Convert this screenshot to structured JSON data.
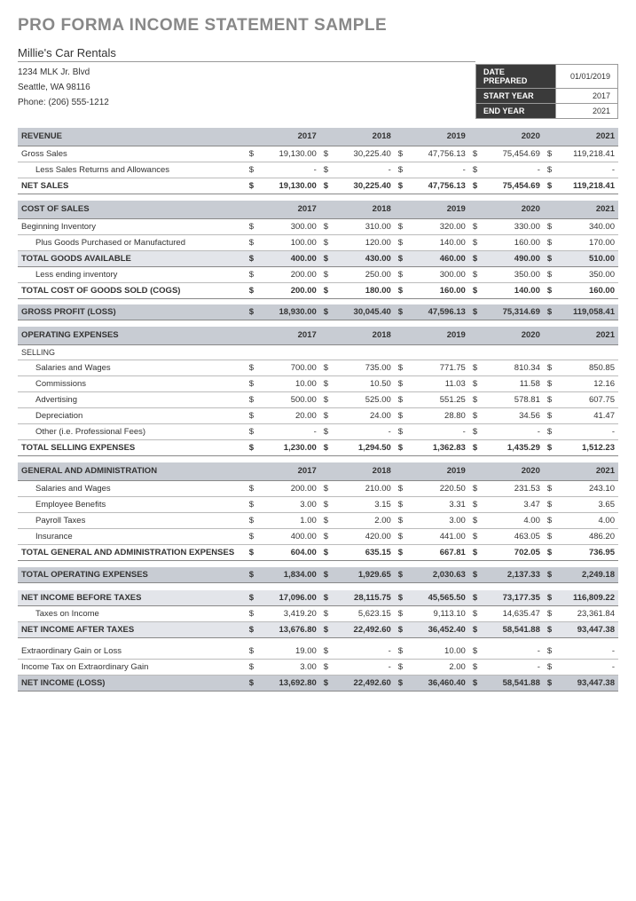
{
  "title": "PRO FORMA INCOME STATEMENT SAMPLE",
  "company": {
    "name": "Millie's Car Rentals",
    "addr1": "1234 MLK Jr. Blvd",
    "addr2": "Seattle, WA 98116",
    "phone": "Phone: (206) 555-1212"
  },
  "meta": {
    "date_prepared_label": "DATE PREPARED",
    "date_prepared": "01/01/2019",
    "start_year_label": "START YEAR",
    "start_year": "2017",
    "end_year_label": "END YEAR",
    "end_year": "2021"
  },
  "years": [
    "2017",
    "2018",
    "2019",
    "2020",
    "2021"
  ],
  "sections": {
    "revenue": {
      "header": "REVENUE",
      "gross_sales": {
        "label": "Gross Sales",
        "v": [
          "19,130.00",
          "30,225.40",
          "47,756.13",
          "75,454.69",
          "119,218.41"
        ]
      },
      "less_returns": {
        "label": "Less Sales Returns and Allowances",
        "v": [
          "-",
          "-",
          "-",
          "-",
          "-"
        ]
      },
      "net_sales": {
        "label": "NET SALES",
        "v": [
          "19,130.00",
          "30,225.40",
          "47,756.13",
          "75,454.69",
          "119,218.41"
        ]
      }
    },
    "cost_of_sales": {
      "header": "COST OF SALES",
      "beg_inv": {
        "label": "Beginning Inventory",
        "v": [
          "300.00",
          "310.00",
          "320.00",
          "330.00",
          "340.00"
        ]
      },
      "plus_goods": {
        "label": "Plus Goods Purchased or Manufactured",
        "v": [
          "100.00",
          "120.00",
          "140.00",
          "160.00",
          "170.00"
        ]
      },
      "total_goods": {
        "label": "TOTAL GOODS AVAILABLE",
        "v": [
          "400.00",
          "430.00",
          "460.00",
          "490.00",
          "510.00"
        ]
      },
      "less_end": {
        "label": "Less ending inventory",
        "v": [
          "200.00",
          "250.00",
          "300.00",
          "350.00",
          "350.00"
        ]
      },
      "cogs": {
        "label": "TOTAL COST OF GOODS SOLD (COGS)",
        "v": [
          "200.00",
          "180.00",
          "160.00",
          "140.00",
          "160.00"
        ]
      },
      "gross_profit": {
        "label": "GROSS PROFIT (LOSS)",
        "v": [
          "18,930.00",
          "30,045.40",
          "47,596.13",
          "75,314.69",
          "119,058.41"
        ]
      }
    },
    "opex": {
      "header": "OPERATING EXPENSES",
      "selling_label": "SELLING",
      "selling": {
        "salaries": {
          "label": "Salaries and Wages",
          "v": [
            "700.00",
            "735.00",
            "771.75",
            "810.34",
            "850.85"
          ]
        },
        "commissions": {
          "label": "Commissions",
          "v": [
            "10.00",
            "10.50",
            "11.03",
            "11.58",
            "12.16"
          ]
        },
        "advertising": {
          "label": "Advertising",
          "v": [
            "500.00",
            "525.00",
            "551.25",
            "578.81",
            "607.75"
          ]
        },
        "depreciation": {
          "label": "Depreciation",
          "v": [
            "20.00",
            "24.00",
            "28.80",
            "34.56",
            "41.47"
          ]
        },
        "other": {
          "label": "Other  (i.e. Professional Fees)",
          "v": [
            "-",
            "-",
            "-",
            "-",
            "-"
          ]
        },
        "total": {
          "label": "TOTAL SELLING EXPENSES",
          "v": [
            "1,230.00",
            "1,294.50",
            "1,362.83",
            "1,435.29",
            "1,512.23"
          ]
        }
      },
      "ga_header": "GENERAL AND ADMINISTRATION",
      "ga": {
        "salaries": {
          "label": "Salaries and Wages",
          "v": [
            "200.00",
            "210.00",
            "220.50",
            "231.53",
            "243.10"
          ]
        },
        "benefits": {
          "label": "Employee Benefits",
          "v": [
            "3.00",
            "3.15",
            "3.31",
            "3.47",
            "3.65"
          ]
        },
        "payroll": {
          "label": "Payroll Taxes",
          "v": [
            "1.00",
            "2.00",
            "3.00",
            "4.00",
            "4.00"
          ]
        },
        "insurance": {
          "label": "Insurance",
          "v": [
            "400.00",
            "420.00",
            "441.00",
            "463.05",
            "486.20"
          ]
        },
        "total": {
          "label": "TOTAL GENERAL AND ADMINISTRATION EXPENSES",
          "v": [
            "604.00",
            "635.15",
            "667.81",
            "702.05",
            "736.95"
          ]
        }
      },
      "total_opex": {
        "label": "TOTAL OPERATING EXPENSES",
        "v": [
          "1,834.00",
          "1,929.65",
          "2,030.63",
          "2,137.33",
          "2,249.18"
        ]
      }
    },
    "net": {
      "before_tax": {
        "label": "NET INCOME BEFORE TAXES",
        "v": [
          "17,096.00",
          "28,115.75",
          "45,565.50",
          "73,177.35",
          "116,809.22"
        ]
      },
      "taxes": {
        "label": "Taxes on Income",
        "v": [
          "3,419.20",
          "5,623.15",
          "9,113.10",
          "14,635.47",
          "23,361.84"
        ]
      },
      "after_tax": {
        "label": "NET INCOME AFTER TAXES",
        "v": [
          "13,676.80",
          "22,492.60",
          "36,452.40",
          "58,541.88",
          "93,447.38"
        ]
      },
      "extra_gain": {
        "label": "Extraordinary Gain or Loss",
        "v": [
          "19.00",
          "-",
          "10.00",
          "-",
          "-"
        ]
      },
      "extra_tax": {
        "label": "Income Tax on Extraordinary Gain",
        "v": [
          "3.00",
          "-",
          "2.00",
          "-",
          "-"
        ]
      },
      "net_income": {
        "label": "NET INCOME (LOSS)",
        "v": [
          "13,692.80",
          "22,492.60",
          "36,460.40",
          "58,541.88",
          "93,447.38"
        ]
      }
    }
  },
  "colors": {
    "header_bg": "#c8ccd3",
    "sub_bg": "#e3e5ea",
    "meta_dark": "#3a3a3a",
    "title_gray": "#888"
  }
}
